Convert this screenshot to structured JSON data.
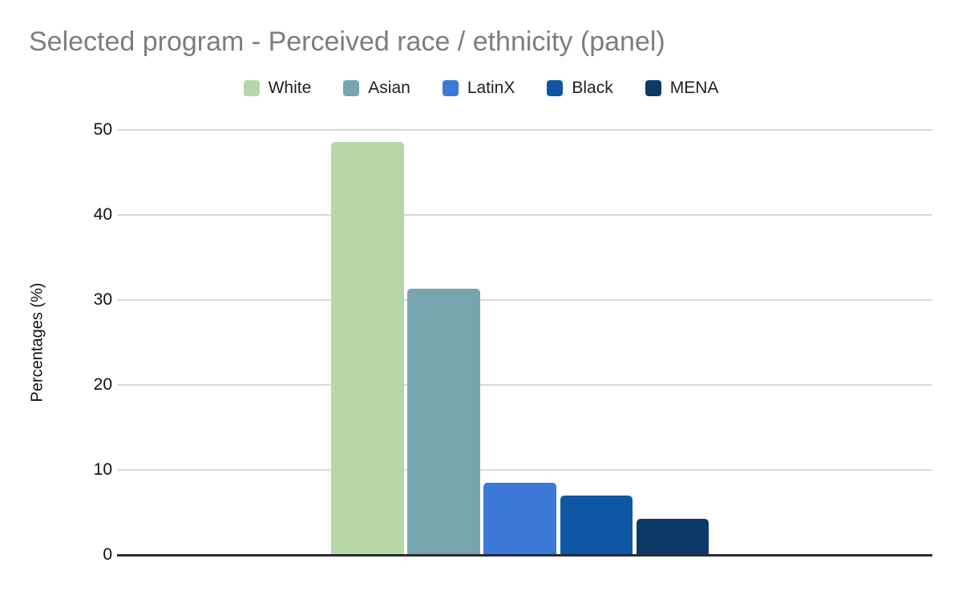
{
  "page": {
    "background_color": "#ffffff",
    "title_color": "#7d7d7d",
    "gridline_color": "#d9d9d9",
    "axis_line_color": "#2b2b2b",
    "text_color": "#111111"
  },
  "chart_data": {
    "type": "bar",
    "title": "Selected program - Perceived race / ethnicity (panel)",
    "xlabel": "",
    "ylabel": "Percentages (%)",
    "categories": [
      "White",
      "Asian",
      "LatinX",
      "Black",
      "MENA"
    ],
    "values": [
      48.5,
      31.3,
      8.5,
      7.0,
      4.2
    ],
    "colors": [
      "#b6d7a8",
      "#76a5af",
      "#3c78d8",
      "#0e56a3",
      "#0b3a66"
    ],
    "legend": [
      "White",
      "Asian",
      "LatinX",
      "Black",
      "MENA"
    ],
    "legend_position": "top",
    "ylim": [
      0,
      50
    ],
    "yticks": [
      0,
      10,
      20,
      30,
      40,
      50
    ],
    "grid": true
  }
}
